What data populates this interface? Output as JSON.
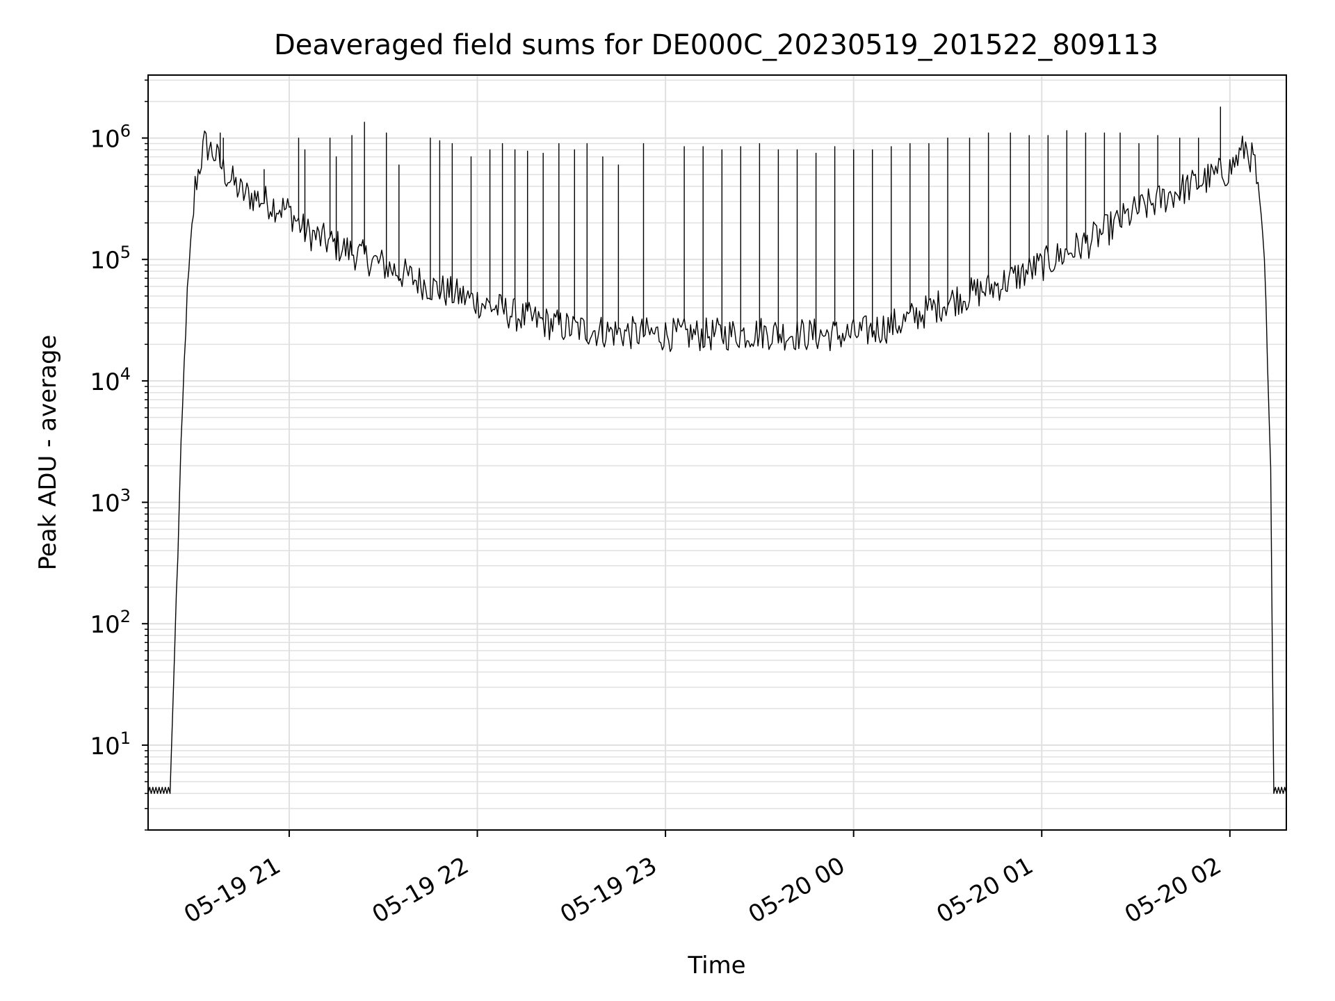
{
  "chart_data": {
    "type": "line",
    "title": "Deaveraged field sums for DE000C_20230519_201522_809113",
    "xlabel": "Time",
    "ylabel": "Peak ADU - average",
    "xscale": "time",
    "yscale": "log",
    "xlim": [
      "2023-05-19 20:15",
      "2023-05-20 02:18"
    ],
    "ylim": [
      2,
      3300000
    ],
    "grid": true,
    "line_color": "#000000",
    "grid_color": "#e0e0e0",
    "x_ticks": [
      {
        "time": "2023-05-19 21:00",
        "label": "05-19 21"
      },
      {
        "time": "2023-05-19 22:00",
        "label": "05-19 22"
      },
      {
        "time": "2023-05-19 23:00",
        "label": "05-19 23"
      },
      {
        "time": "2023-05-20 00:00",
        "label": "05-20 00"
      },
      {
        "time": "2023-05-20 01:00",
        "label": "05-20 01"
      },
      {
        "time": "2023-05-20 02:00",
        "label": "05-20 02"
      }
    ],
    "y_ticks": [
      {
        "value": 10,
        "base": "10",
        "exp": "1"
      },
      {
        "value": 100,
        "base": "10",
        "exp": "2"
      },
      {
        "value": 1000,
        "base": "10",
        "exp": "3"
      },
      {
        "value": 10000,
        "base": "10",
        "exp": "4"
      },
      {
        "value": 100000,
        "base": "10",
        "exp": "5"
      },
      {
        "value": 1000000,
        "base": "10",
        "exp": "6"
      }
    ],
    "series": [
      {
        "baseline": {
          "x": [
            "2023-05-19 20:15",
            "2023-05-19 20:22",
            "2023-05-19 20:25",
            "2023-05-19 20:27",
            "2023-05-19 20:30",
            "2023-05-19 20:33",
            "2023-05-19 20:36",
            "2023-05-19 20:40",
            "2023-05-19 20:45",
            "2023-05-19 20:50",
            "2023-05-19 21:00",
            "2023-05-19 21:05",
            "2023-05-19 21:15",
            "2023-05-19 21:30",
            "2023-05-19 21:45",
            "2023-05-19 22:00",
            "2023-05-19 22:15",
            "2023-05-19 22:30",
            "2023-05-19 22:45",
            "2023-05-19 23:00",
            "2023-05-19 23:15",
            "2023-05-19 23:30",
            "2023-05-19 23:45",
            "2023-05-20 00:00",
            "2023-05-20 00:15",
            "2023-05-20 00:30",
            "2023-05-20 00:45",
            "2023-05-20 01:00",
            "2023-05-20 01:15",
            "2023-05-20 01:30",
            "2023-05-20 01:45",
            "2023-05-20 02:00",
            "2023-05-20 02:05",
            "2023-05-20 02:08",
            "2023-05-20 02:11",
            "2023-05-20 02:13",
            "2023-05-20 02:14",
            "2023-05-20 02:18"
          ],
          "y": [
            4,
            4,
            1000,
            30000,
            400000,
            900000,
            750000,
            500000,
            350000,
            320000,
            250000,
            170000,
            130000,
            90000,
            60000,
            45000,
            33000,
            27000,
            25000,
            24000,
            24000,
            25000,
            24000,
            24000,
            30000,
            45000,
            60000,
            90000,
            140000,
            250000,
            380000,
            550000,
            850000,
            600000,
            100000,
            1500,
            4,
            4
          ]
        },
        "spikes": {
          "x": [
            "2023-05-19 20:38",
            "2023-05-19 20:39",
            "2023-05-19 20:52",
            "2023-05-19 21:03",
            "2023-05-19 21:05",
            "2023-05-19 21:13",
            "2023-05-19 21:15",
            "2023-05-19 21:20",
            "2023-05-19 21:24",
            "2023-05-19 21:31",
            "2023-05-19 21:35",
            "2023-05-19 21:45",
            "2023-05-19 21:48",
            "2023-05-19 21:52",
            "2023-05-19 21:58",
            "2023-05-19 22:04",
            "2023-05-19 22:08",
            "2023-05-19 22:12",
            "2023-05-19 22:16",
            "2023-05-19 22:21",
            "2023-05-19 22:26",
            "2023-05-19 22:31",
            "2023-05-19 22:35",
            "2023-05-19 22:40",
            "2023-05-19 22:45",
            "2023-05-19 22:53",
            "2023-05-19 23:06",
            "2023-05-19 23:12",
            "2023-05-19 23:18",
            "2023-05-19 23:24",
            "2023-05-19 23:30",
            "2023-05-19 23:36",
            "2023-05-19 23:42",
            "2023-05-19 23:48",
            "2023-05-19 23:54",
            "2023-05-20 00:00",
            "2023-05-20 00:06",
            "2023-05-20 00:12",
            "2023-05-20 00:18",
            "2023-05-20 00:24",
            "2023-05-20 00:30",
            "2023-05-20 00:37",
            "2023-05-20 00:43",
            "2023-05-20 00:50",
            "2023-05-20 00:56",
            "2023-05-20 01:02",
            "2023-05-20 01:08",
            "2023-05-20 01:14",
            "2023-05-20 01:20",
            "2023-05-20 01:25",
            "2023-05-20 01:31",
            "2023-05-20 01:37",
            "2023-05-20 01:44",
            "2023-05-20 01:50",
            "2023-05-20 01:57"
          ],
          "y": [
            1100000,
            1000000,
            550000,
            1000000,
            800000,
            1000000,
            700000,
            1050000,
            1350000,
            1100000,
            600000,
            1000000,
            950000,
            900000,
            700000,
            800000,
            900000,
            800000,
            780000,
            750000,
            900000,
            800000,
            900000,
            700000,
            600000,
            900000,
            850000,
            850000,
            800000,
            850000,
            900000,
            800000,
            800000,
            750000,
            850000,
            800000,
            800000,
            850000,
            900000,
            900000,
            1000000,
            1000000,
            1100000,
            1100000,
            1050000,
            1050000,
            1150000,
            1100000,
            1100000,
            1100000,
            900000,
            1050000,
            1000000,
            1000000,
            1800000
          ]
        }
      }
    ]
  }
}
